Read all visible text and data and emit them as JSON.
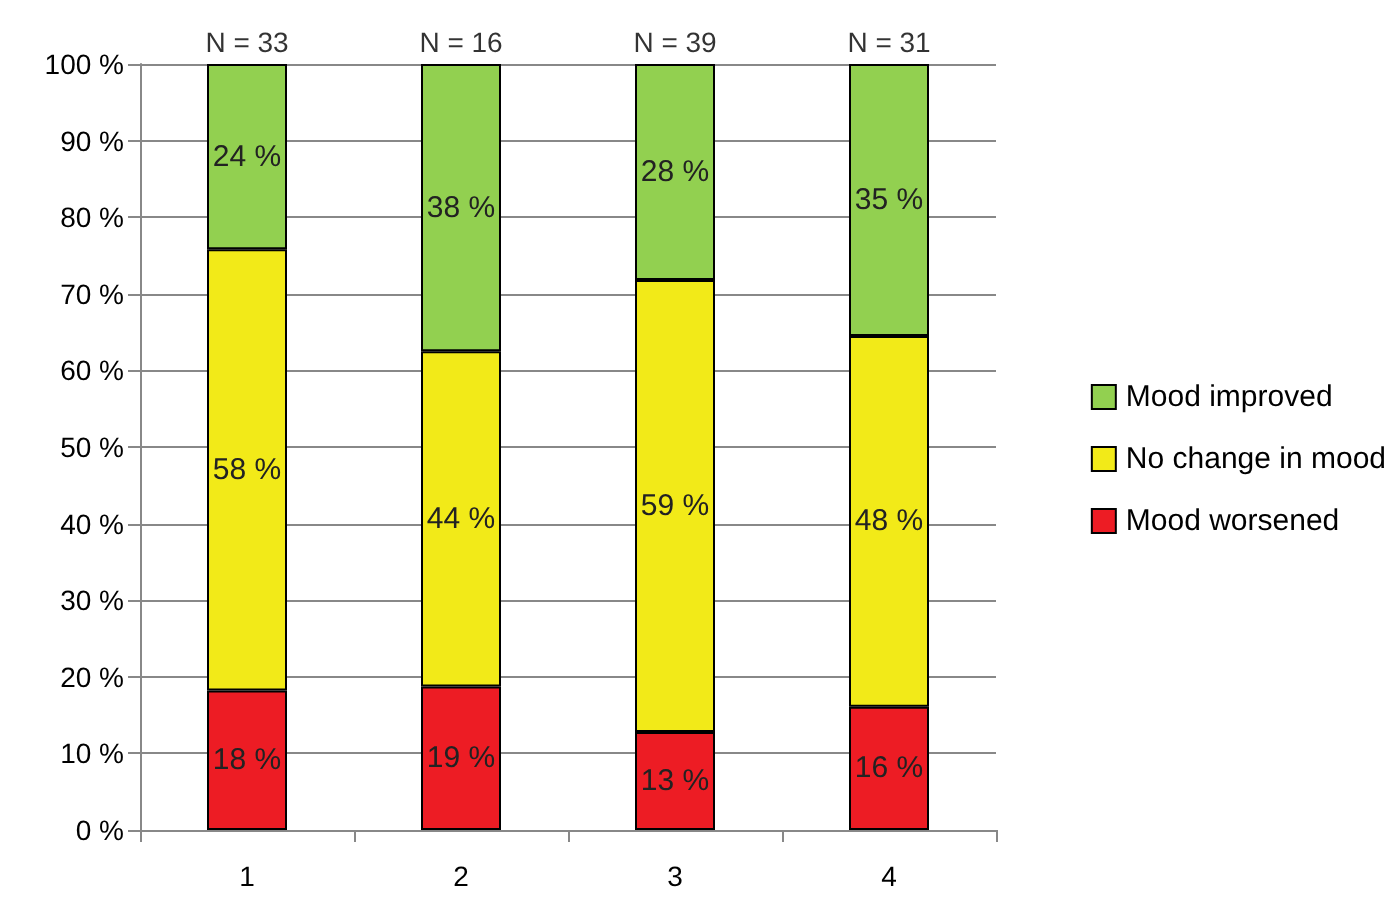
{
  "chart_data": {
    "type": "bar",
    "stacked": true,
    "categories": [
      "1",
      "2",
      "3",
      "4"
    ],
    "series": [
      {
        "name": "Mood worsened",
        "color": "#ed1c24",
        "values": [
          18.2,
          18.75,
          12.8,
          16.1
        ],
        "value_labels": [
          "18 %",
          "19 %",
          "13 %",
          "16 %"
        ]
      },
      {
        "name": "No change in mood",
        "color": "#f2ea18",
        "values": [
          57.6,
          43.75,
          59.0,
          48.4
        ],
        "value_labels": [
          "58 %",
          "44 %",
          "59 %",
          "48 %"
        ]
      },
      {
        "name": "Mood improved",
        "color": "#92d050",
        "values": [
          24.2,
          37.5,
          28.2,
          35.5
        ],
        "value_labels": [
          "24 %",
          "38 %",
          "28 %",
          "35 %"
        ]
      }
    ],
    "ylim": [
      0,
      100
    ],
    "yticks": [
      {
        "value": 0,
        "label": "0 %"
      },
      {
        "value": 10,
        "label": "10 %"
      },
      {
        "value": 20,
        "label": "20 %"
      },
      {
        "value": 30,
        "label": "30 %"
      },
      {
        "value": 40,
        "label": "40 %"
      },
      {
        "value": 50,
        "label": "50 %"
      },
      {
        "value": 60,
        "label": "60 %"
      },
      {
        "value": 70,
        "label": "70 %"
      },
      {
        "value": 80,
        "label": "80 %"
      },
      {
        "value": 90,
        "label": "90 %"
      },
      {
        "value": 100,
        "label": "100 %"
      }
    ],
    "annotations": [
      {
        "text": "N = 33",
        "x": "1",
        "y": 100
      },
      {
        "text": "N = 16",
        "x": "2",
        "y": 100
      },
      {
        "text": "N = 39",
        "x": "3",
        "y": 100
      },
      {
        "text": "N = 31",
        "x": "4",
        "y": 100
      }
    ],
    "grid": "y",
    "legend": "right"
  }
}
